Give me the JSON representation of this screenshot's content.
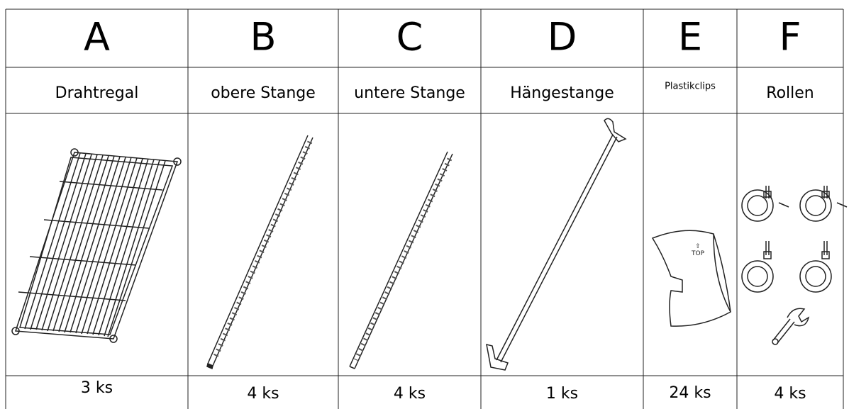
{
  "table": {
    "columns": [
      {
        "letter": "A",
        "name": "Drahtregal",
        "quantity": "3 ks"
      },
      {
        "letter": "B",
        "name": "obere Stange",
        "quantity": "4 ks"
      },
      {
        "letter": "C",
        "name": "untere Stange",
        "quantity": "4 ks"
      },
      {
        "letter": "D",
        "name": "Hängestange",
        "quantity": "1 ks"
      },
      {
        "letter": "E",
        "name": "Plastikclips",
        "quantity": "24 ks"
      },
      {
        "letter": "F",
        "name": "Rollen",
        "quantity": "4 ks"
      }
    ]
  }
}
